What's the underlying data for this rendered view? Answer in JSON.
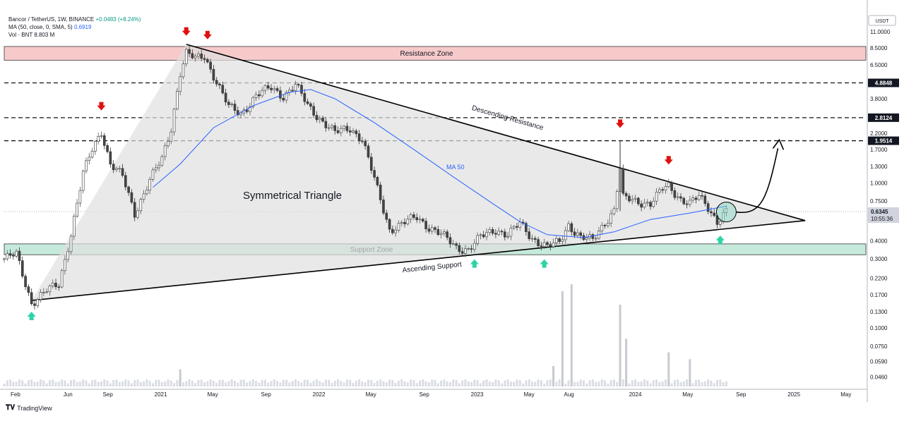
{
  "header": {
    "symbol": "Bancor / TetherUS, 1W, BINANCE",
    "change": "+0.0483 (+8.24%)",
    "ma_label": "MA (50, close, 0, SMA, 5)",
    "ma_value": "0.6919",
    "vol_label": "Vol · BNT",
    "vol_value": "8.803 M"
  },
  "currency_badge": "USDT",
  "brand": "TradingView",
  "colors": {
    "up": "#089981",
    "down": "#f23645",
    "resistance_zone": "#f7c5c5",
    "support_zone": "#bfe8d8",
    "triangle": "#e0e0e0",
    "ma": "#2962ff",
    "arrow_down": "#e01010",
    "arrow_up": "#2ed3a8"
  },
  "chart_data": {
    "type": "candlestick",
    "title": "",
    "pattern_label": "Symmetrical Triangle",
    "y_scale": "log",
    "ylim": [
      0.04,
      11.5
    ],
    "xlim": [
      "2020-01-06",
      "2025-06-16"
    ],
    "y_ticks": [
      "11.0000",
      "8.5000",
      "6.5000",
      "4.8848",
      "3.8000",
      "2.8124",
      "2.2000",
      "1.9514",
      "1.7000",
      "1.3000",
      "1.0000",
      "0.7500",
      "0.6345",
      "0.4000",
      "0.3000",
      "0.2200",
      "0.1700",
      "0.1300",
      "0.1000",
      "0.0750",
      "0.0590",
      "0.0460"
    ],
    "y_tick_values": [
      11.0,
      8.5,
      6.5,
      4.8848,
      3.8,
      2.8124,
      2.2,
      1.9514,
      1.7,
      1.3,
      1.0,
      0.75,
      0.6345,
      0.4,
      0.3,
      0.22,
      0.17,
      0.13,
      0.1,
      0.075,
      0.059,
      0.046
    ],
    "highlighted_prices": [
      "4.8848",
      "2.8124",
      "1.9514"
    ],
    "last_price": "0.6345",
    "countdown": "10:55:36",
    "x_ticks": [
      {
        "label": "Feb",
        "date": "2020-02-01"
      },
      {
        "label": "Jun",
        "date": "2020-06-01"
      },
      {
        "label": "Sep",
        "date": "2020-09-01"
      },
      {
        "label": "2021",
        "date": "2021-01-01"
      },
      {
        "label": "May",
        "date": "2021-05-01"
      },
      {
        "label": "Sep",
        "date": "2021-09-01"
      },
      {
        "label": "2022",
        "date": "2022-01-01"
      },
      {
        "label": "May",
        "date": "2022-05-01"
      },
      {
        "label": "Sep",
        "date": "2022-09-01"
      },
      {
        "label": "2023",
        "date": "2023-01-01"
      },
      {
        "label": "May",
        "date": "2023-05-01"
      },
      {
        "label": "Aug",
        "date": "2023-08-01"
      },
      {
        "label": "2024",
        "date": "2024-01-01"
      },
      {
        "label": "May",
        "date": "2024-05-01"
      },
      {
        "label": "Sep",
        "date": "2024-09-01"
      },
      {
        "label": "2025",
        "date": "2025-01-01"
      },
      {
        "label": "May",
        "date": "2025-05-01"
      }
    ],
    "close_path": [
      [
        "2020-01-06",
        0.3
      ],
      [
        "2020-02-03",
        0.32
      ],
      [
        "2020-03-09",
        0.15
      ],
      [
        "2020-04-13",
        0.18
      ],
      [
        "2020-05-11",
        0.2
      ],
      [
        "2020-06-08",
        0.45
      ],
      [
        "2020-07-06",
        1.15
      ],
      [
        "2020-07-27",
        1.7
      ],
      [
        "2020-08-17",
        2.3
      ],
      [
        "2020-09-07",
        1.35
      ],
      [
        "2020-10-05",
        1.1
      ],
      [
        "2020-11-02",
        0.62
      ],
      [
        "2020-12-07",
        1.05
      ],
      [
        "2021-01-04",
        1.45
      ],
      [
        "2021-01-25",
        2.4
      ],
      [
        "2021-02-15",
        5.8
      ],
      [
        "2021-03-01",
        7.8
      ],
      [
        "2021-03-22",
        7.1
      ],
      [
        "2021-04-12",
        7.5
      ],
      [
        "2021-05-10",
        5.0
      ],
      [
        "2021-06-07",
        3.3
      ],
      [
        "2021-07-05",
        3.0
      ],
      [
        "2021-08-09",
        4.0
      ],
      [
        "2021-09-13",
        4.5
      ],
      [
        "2021-10-11",
        4.0
      ],
      [
        "2021-11-08",
        4.7
      ],
      [
        "2021-12-06",
        3.4
      ],
      [
        "2022-01-03",
        2.8
      ],
      [
        "2022-02-07",
        2.2
      ],
      [
        "2022-03-14",
        2.4
      ],
      [
        "2022-04-11",
        2.0
      ],
      [
        "2022-05-09",
        1.05
      ],
      [
        "2022-06-13",
        0.48
      ],
      [
        "2022-07-11",
        0.52
      ],
      [
        "2022-08-15",
        0.58
      ],
      [
        "2022-09-12",
        0.5
      ],
      [
        "2022-10-10",
        0.44
      ],
      [
        "2022-11-14",
        0.36
      ],
      [
        "2022-12-12",
        0.35
      ],
      [
        "2023-01-09",
        0.42
      ],
      [
        "2023-02-13",
        0.48
      ],
      [
        "2023-03-13",
        0.44
      ],
      [
        "2023-04-10",
        0.52
      ],
      [
        "2023-05-08",
        0.42
      ],
      [
        "2023-06-12",
        0.36
      ],
      [
        "2023-07-10",
        0.39
      ],
      [
        "2023-07-31",
        0.52
      ],
      [
        "2023-08-28",
        0.42
      ],
      [
        "2023-09-25",
        0.4
      ],
      [
        "2023-10-23",
        0.54
      ],
      [
        "2023-11-13",
        0.65
      ],
      [
        "2023-11-27",
        1.25
      ],
      [
        "2023-12-04",
        0.78
      ],
      [
        "2024-01-08",
        0.75
      ],
      [
        "2024-02-05",
        0.72
      ],
      [
        "2024-03-04",
        0.9
      ],
      [
        "2024-03-18",
        0.95
      ],
      [
        "2024-04-15",
        0.78
      ],
      [
        "2024-05-06",
        0.72
      ],
      [
        "2024-05-27",
        0.8
      ],
      [
        "2024-06-17",
        0.68
      ],
      [
        "2024-07-08",
        0.55
      ],
      [
        "2024-07-29",
        0.6345
      ]
    ],
    "ma50_path": [
      [
        "2020-12-14",
        0.93
      ],
      [
        "2021-02-15",
        1.35
      ],
      [
        "2021-05-03",
        2.4
      ],
      [
        "2021-08-02",
        3.4
      ],
      [
        "2021-10-25",
        4.2
      ],
      [
        "2021-12-13",
        4.4
      ],
      [
        "2022-02-07",
        3.8
      ],
      [
        "2022-05-09",
        2.6
      ],
      [
        "2022-08-08",
        1.7
      ],
      [
        "2022-11-07",
        1.1
      ],
      [
        "2023-02-06",
        0.72
      ],
      [
        "2023-04-10",
        0.54
      ],
      [
        "2023-06-12",
        0.44
      ],
      [
        "2023-09-04",
        0.42
      ],
      [
        "2023-11-13",
        0.46
      ],
      [
        "2024-02-05",
        0.56
      ],
      [
        "2024-05-06",
        0.62
      ],
      [
        "2024-07-29",
        0.6919
      ]
    ],
    "volume": {
      "label": "Vol",
      "spikes": [
        [
          "2021-02-15",
          0.05
        ],
        [
          "2023-06-26",
          0.06
        ],
        [
          "2023-07-17",
          0.28
        ],
        [
          "2023-08-07",
          0.3
        ],
        [
          "2023-11-27",
          0.24
        ],
        [
          "2023-12-11",
          0.14
        ],
        [
          "2024-03-18",
          0.1
        ],
        [
          "2024-05-06",
          0.08
        ]
      ]
    },
    "zones": [
      {
        "label": "Resistance Zone",
        "y_low": 7.0,
        "y_high": 8.7
      },
      {
        "label": "Support Zone",
        "y_low": 0.32,
        "y_high": 0.38
      }
    ],
    "horizontal_levels": [
      4.8848,
      2.8124,
      1.9514
    ],
    "trendlines": [
      {
        "label": "Descending Resistance",
        "from": [
          "2021-03-01",
          9.0
        ],
        "to": [
          "2025-01-27",
          0.55
        ]
      },
      {
        "label": "Ascending Support",
        "from": [
          "2020-03-09",
          0.155
        ],
        "to": [
          "2025-01-27",
          0.55
        ]
      }
    ],
    "ma_label": "MA 50",
    "markers": {
      "down_arrows": [
        [
          "2020-08-17",
          3.3
        ],
        [
          "2021-03-01",
          10.8
        ],
        [
          "2021-04-19",
          10.2
        ],
        [
          "2023-11-27",
          2.5
        ],
        [
          "2024-03-18",
          1.4
        ]
      ],
      "up_arrows": [
        [
          "2020-03-09",
          0.124
        ],
        [
          "2022-12-26",
          0.285
        ],
        [
          "2023-06-05",
          0.285
        ],
        [
          "2024-07-15",
          0.415
        ]
      ]
    }
  }
}
